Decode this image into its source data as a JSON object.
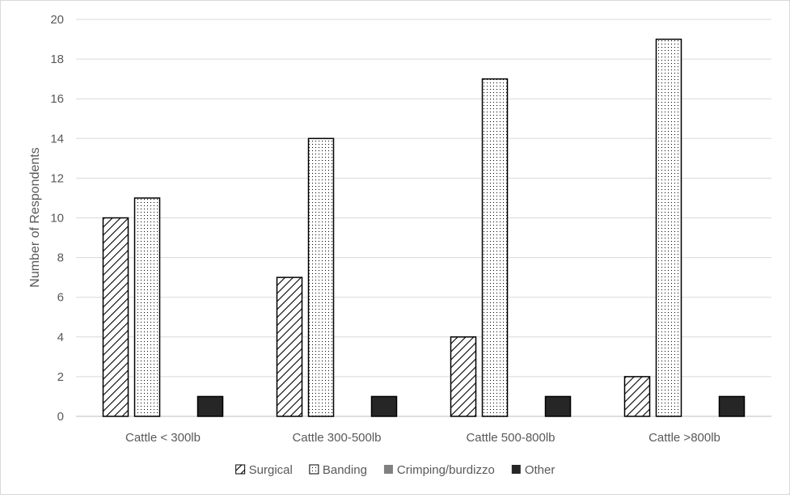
{
  "chart_data": {
    "type": "bar",
    "title": "",
    "xlabel": "",
    "ylabel": "Number of Respondents",
    "ylim": [
      0,
      20
    ],
    "yticks": [
      0,
      2,
      4,
      6,
      8,
      10,
      12,
      14,
      16,
      18,
      20
    ],
    "grid": true,
    "legend_position": "bottom",
    "categories": [
      "Cattle < 300lb",
      "Cattle 300-500lb",
      "Cattle 500-800lb",
      "Cattle >800lb"
    ],
    "series": [
      {
        "name": "Surgical",
        "values": [
          10,
          7,
          4,
          2
        ],
        "pattern": "diagonal-hatch",
        "color": "#000000"
      },
      {
        "name": "Banding",
        "values": [
          11,
          14,
          17,
          19
        ],
        "pattern": "dots",
        "color": "#000000"
      },
      {
        "name": "Crimping/burdizzo",
        "values": [
          0,
          0,
          0,
          0
        ],
        "pattern": "solid",
        "color": "#808080"
      },
      {
        "name": "Other",
        "values": [
          1,
          1,
          1,
          1
        ],
        "pattern": "solid",
        "color": "#262626"
      }
    ]
  }
}
